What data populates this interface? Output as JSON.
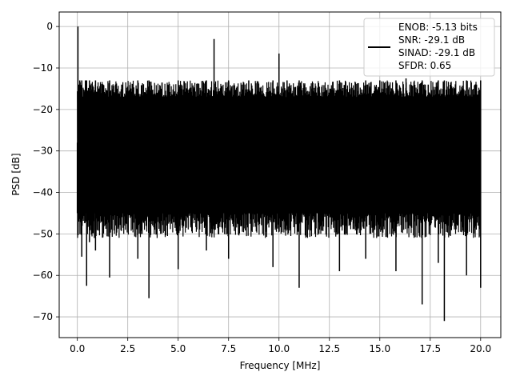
{
  "chart_data": {
    "type": "line",
    "xlabel": "Frequency [MHz]",
    "ylabel": "PSD [dB]",
    "xlim": [
      -0.9,
      21.0
    ],
    "ylim": [
      -75.0,
      3.5
    ],
    "xticks": [
      0.0,
      2.5,
      5.0,
      7.5,
      10.0,
      12.5,
      15.0,
      17.5,
      20.0
    ],
    "xtick_labels": [
      "0.0",
      "2.5",
      "5.0",
      "7.5",
      "10.0",
      "12.5",
      "15.0",
      "17.5",
      "20.0"
    ],
    "yticks": [
      0,
      -10,
      -20,
      -30,
      -40,
      -50,
      -60,
      -70
    ],
    "ytick_labels": [
      "0",
      "−10",
      "−20",
      "−30",
      "−40",
      "−50",
      "−60",
      "−70"
    ],
    "grid": true,
    "legend_position": "top-right",
    "line_color": "#000000",
    "series": [
      {
        "legend_lines": [
          "ENOB: -5.13 bits",
          "SNR: -29.1 dB",
          "SINAD: -29.1 dB",
          "SFDR: 0.65"
        ],
        "noise_envelope_top_db": -13,
        "noise_envelope_bottom_db": -45,
        "x": [
          0.0,
          0.03,
          0.08,
          0.12,
          0.18,
          0.22,
          0.3,
          0.4,
          0.46,
          0.5,
          0.6,
          0.75,
          0.9,
          1.2,
          1.6,
          2.2,
          3.0,
          3.55,
          4.2,
          5.0,
          5.8,
          6.4,
          6.78,
          6.9,
          7.5,
          8.5,
          9.7,
          10.0,
          10.4,
          11.0,
          12.0,
          13.0,
          14.3,
          15.0,
          15.8,
          16.3,
          17.1,
          17.4,
          17.9,
          18.2,
          18.7,
          19.3,
          20.0
        ],
        "y": [
          -28.0,
          0.0,
          -14.0,
          -38.0,
          -24.0,
          -55.5,
          -20.0,
          -47.0,
          -62.5,
          -18.0,
          -52.0,
          -15.0,
          -54.0,
          -16.0,
          -60.5,
          -14.0,
          -56.0,
          -65.5,
          -13.5,
          -58.5,
          -15.0,
          -54.0,
          -3.0,
          -20.0,
          -56.0,
          -13.0,
          -58.0,
          -6.5,
          -48.0,
          -63.0,
          -14.5,
          -59.0,
          -56.0,
          -13.0,
          -59.0,
          -12.5,
          -67.0,
          -14.0,
          -57.0,
          -71.0,
          -15.0,
          -60.0,
          -63.0
        ]
      }
    ]
  }
}
